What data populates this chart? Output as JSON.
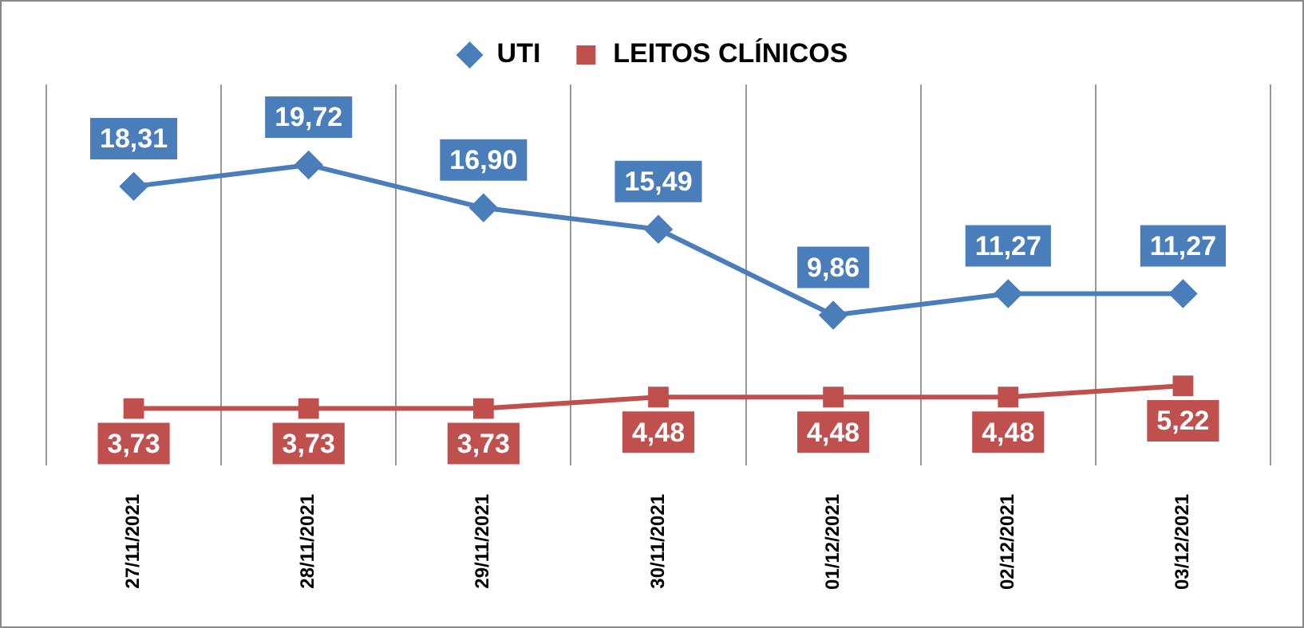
{
  "chart_data": {
    "type": "line",
    "categories": [
      "27/11/2021",
      "28/11/2021",
      "29/11/2021",
      "30/11/2021",
      "01/12/2021",
      "02/12/2021",
      "03/12/2021"
    ],
    "series": [
      {
        "name": "UTI",
        "color": "#4a7ebb",
        "marker": "diamond",
        "values": [
          18.31,
          19.72,
          16.9,
          15.49,
          9.86,
          11.27,
          11.27
        ],
        "value_labels": [
          "18,31",
          "19,72",
          "16,90",
          "15,49",
          "9,86",
          "11,27",
          "11,27"
        ]
      },
      {
        "name": "LEITOS CLÍNICOS",
        "color": "#c0504d",
        "marker": "square",
        "values": [
          3.73,
          3.73,
          3.73,
          4.48,
          4.48,
          4.48,
          5.22
        ],
        "value_labels": [
          "3,73",
          "3,73",
          "3,73",
          "4,48",
          "4,48",
          "4,48",
          "5,22"
        ]
      }
    ],
    "grid": "x",
    "legend": "top",
    "tick_labels": "x",
    "line_style": "solid"
  }
}
